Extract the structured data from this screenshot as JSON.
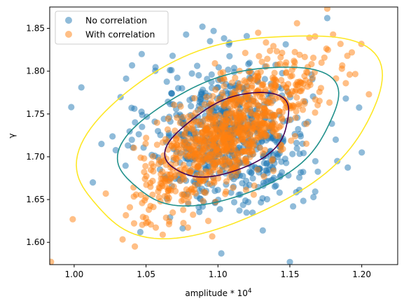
{
  "chart_data": {
    "type": "scatter",
    "xlabel": "amplitude * 10",
    "xlabel_superscript": "4",
    "ylabel": "γ",
    "xlim": [
      0.983,
      1.225
    ],
    "ylim": [
      1.574,
      1.875
    ],
    "x_ticks": [
      "1.00",
      "1.05",
      "1.10",
      "1.15",
      "1.20"
    ],
    "x_tick_values": [
      1.0,
      1.05,
      1.1,
      1.15,
      1.2
    ],
    "y_ticks": [
      "1.60",
      "1.65",
      "1.70",
      "1.75",
      "1.80",
      "1.85"
    ],
    "y_tick_values": [
      1.6,
      1.65,
      1.7,
      1.75,
      1.8,
      1.85
    ],
    "grid": false,
    "legend_position": "top-left",
    "series": [
      {
        "name": "No correlation",
        "color": "#1f77b4",
        "center": [
          1.108,
          1.725
        ],
        "std": [
          0.028,
          0.042
        ],
        "correlation": 0.0,
        "count": 650,
        "outliers": [
          [
            0.998,
            1.758
          ],
          [
            1.005,
            1.781
          ],
          [
            1.013,
            1.67
          ],
          [
            1.047,
            1.82
          ],
          [
            1.097,
            1.847
          ],
          [
            1.12,
            1.841
          ],
          [
            1.15,
            1.577
          ],
          [
            1.2,
            1.705
          ],
          [
            1.046,
            1.612
          ],
          [
            1.176,
            1.862
          ],
          [
            1.183,
            1.695
          ],
          [
            1.019,
            1.715
          ]
        ]
      },
      {
        "name": "With correlation",
        "color": "#ff7f0e",
        "center": [
          1.108,
          1.728
        ],
        "std": [
          0.03,
          0.042
        ],
        "correlation": 0.72,
        "count": 900,
        "outliers": [
          [
            0.999,
            1.627
          ],
          [
            1.176,
            1.873
          ],
          [
            1.155,
            1.856
          ],
          [
            1.205,
            1.773
          ],
          [
            1.096,
            1.607
          ],
          [
            1.022,
            1.657
          ],
          [
            1.19,
            1.818
          ],
          [
            1.172,
            1.81
          ]
        ]
      }
    ],
    "contours": [
      {
        "level": "inner",
        "color": "#440154",
        "center": [
          1.108,
          1.725
        ],
        "radii": [
          0.05,
          0.03
        ],
        "angle_deg": 40
      },
      {
        "level": "middle",
        "color": "#21918c",
        "center": [
          1.108,
          1.725
        ],
        "radii": [
          0.085,
          0.052
        ],
        "angle_deg": 35
      },
      {
        "level": "outer",
        "color": "#fde725",
        "center": [
          1.107,
          1.728
        ],
        "radii": [
          0.12,
          0.075
        ],
        "angle_deg": 38
      }
    ]
  }
}
